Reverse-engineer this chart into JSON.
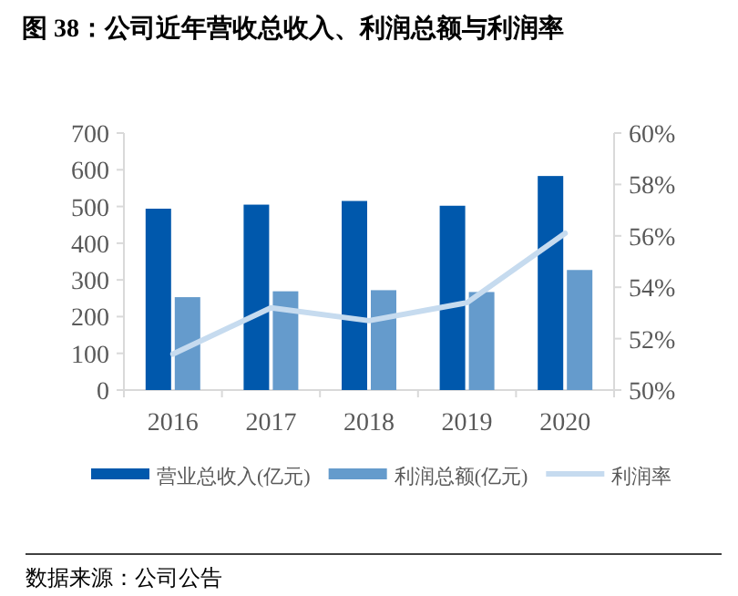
{
  "chart_data": {
    "type": "bar",
    "title": "图 38：公司近年营收总收入、利润总额与利润率",
    "categories": [
      "2016",
      "2017",
      "2018",
      "2019",
      "2020"
    ],
    "series": [
      {
        "name": "营业总收入(亿元)",
        "color": "#0058ac",
        "values": [
          494,
          505,
          515,
          502,
          583
        ]
      },
      {
        "name": "利润总额(亿元)",
        "color": "#659bcc",
        "values": [
          253,
          269,
          272,
          267,
          327
        ]
      },
      {
        "name": "利润率",
        "type": "line",
        "axis": "y2",
        "color": "#c6dbef",
        "values": [
          51.4,
          53.2,
          52.7,
          53.4,
          56.1
        ]
      }
    ],
    "ylim": [
      0,
      700
    ],
    "yticks": [
      0,
      100,
      200,
      300,
      400,
      500,
      600,
      700
    ],
    "y2lim": [
      50,
      60
    ],
    "y2ticks": [
      {
        "value": 50,
        "label": "50%"
      },
      {
        "value": 52,
        "label": "52%"
      },
      {
        "value": 54,
        "label": "54%"
      },
      {
        "value": 56,
        "label": "56%"
      },
      {
        "value": 58,
        "label": "58%"
      },
      {
        "value": 60,
        "label": "60%"
      }
    ],
    "legend": "bottom",
    "annotations": [
      "数据来源：公司公告"
    ]
  }
}
